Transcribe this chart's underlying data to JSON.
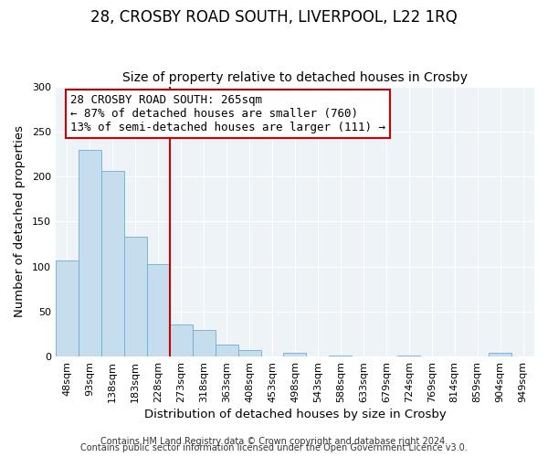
{
  "title": "28, CROSBY ROAD SOUTH, LIVERPOOL, L22 1RQ",
  "subtitle": "Size of property relative to detached houses in Crosby",
  "xlabel": "Distribution of detached houses by size in Crosby",
  "ylabel": "Number of detached properties",
  "bar_labels": [
    "48sqm",
    "93sqm",
    "138sqm",
    "183sqm",
    "228sqm",
    "273sqm",
    "318sqm",
    "363sqm",
    "408sqm",
    "453sqm",
    "498sqm",
    "543sqm",
    "588sqm",
    "633sqm",
    "679sqm",
    "724sqm",
    "769sqm",
    "814sqm",
    "859sqm",
    "904sqm",
    "949sqm"
  ],
  "bar_values": [
    107,
    229,
    206,
    133,
    103,
    36,
    30,
    13,
    7,
    0,
    4,
    0,
    1,
    0,
    0,
    1,
    0,
    0,
    0,
    4,
    0
  ],
  "bar_color": "#c5dded",
  "bar_edge_color": "#6baed6",
  "vline_color": "#cc0000",
  "annotation_title": "28 CROSBY ROAD SOUTH: 265sqm",
  "annotation_line1": "← 87% of detached houses are smaller (760)",
  "annotation_line2": "13% of semi-detached houses are larger (111) →",
  "annotation_box_color": "#ffffff",
  "annotation_box_edge_color": "#cc0000",
  "ylim": [
    0,
    300
  ],
  "yticks": [
    0,
    50,
    100,
    150,
    200,
    250,
    300
  ],
  "footer1": "Contains HM Land Registry data © Crown copyright and database right 2024.",
  "footer2": "Contains public sector information licensed under the Open Government Licence v3.0.",
  "title_fontsize": 12,
  "subtitle_fontsize": 10,
  "axis_label_fontsize": 9.5,
  "tick_fontsize": 8,
  "annotation_fontsize": 9,
  "footer_fontsize": 7
}
